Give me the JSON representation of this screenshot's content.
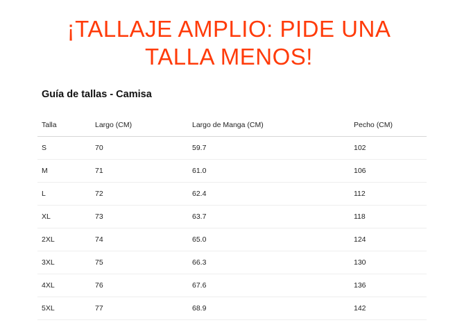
{
  "banner": {
    "text": "¡TALLAJE AMPLIO: PIDE UNA TALLA MENOS!",
    "color": "#ff3b0a"
  },
  "guide": {
    "title": "Guía de tallas - Camisa",
    "headers": [
      "Talla",
      "Largo (CM)",
      "Largo de Manga (CM)",
      "Pecho (CM)"
    ],
    "rows": [
      [
        "S",
        "70",
        "59.7",
        "102"
      ],
      [
        "M",
        "71",
        "61.0",
        "106"
      ],
      [
        "L",
        "72",
        "62.4",
        "112"
      ],
      [
        "XL",
        "73",
        "63.7",
        "118"
      ],
      [
        "2XL",
        "74",
        "65.0",
        "124"
      ],
      [
        "3XL",
        "75",
        "66.3",
        "130"
      ],
      [
        "4XL",
        "76",
        "67.6",
        "136"
      ],
      [
        "5XL",
        "77",
        "68.9",
        "142"
      ]
    ]
  }
}
